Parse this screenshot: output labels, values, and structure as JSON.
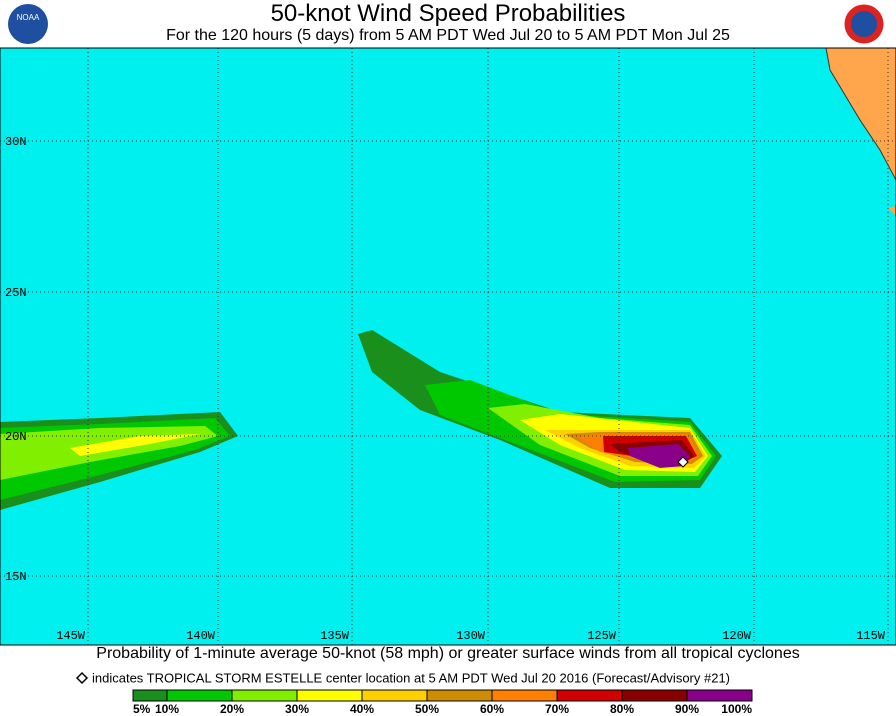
{
  "header": {
    "title": "50-knot Wind Speed Probabilities",
    "subtitle": "For the 120 hours (5 days) from 5 AM PDT Wed Jul 20 to 5 AM PDT Mon Jul 25",
    "left_logo": "NOAA"
  },
  "map": {
    "lat_labels": [
      "30N",
      "25N",
      "20N",
      "15N"
    ],
    "lon_labels": [
      "145W",
      "140W",
      "135W",
      "130W",
      "125W",
      "120W",
      "115W"
    ]
  },
  "footer": {
    "caption": "Probability of 1-minute average 50-knot (58 mph) or greater surface winds from all tropical cyclones",
    "note": "indicates TROPICAL STORM ESTELLE center location at 5 AM PDT Wed Jul 20 2016 (Forecast/Advisory #21)"
  },
  "legend": {
    "labels": [
      "5%",
      "10%",
      "20%",
      "30%",
      "40%",
      "50%",
      "60%",
      "70%",
      "80%",
      "90%",
      "100%"
    ],
    "colors": [
      "#1b8f1b",
      "#00c800",
      "#80f000",
      "#ffff00",
      "#ffd000",
      "#d08c00",
      "#ff7f00",
      "#d00000",
      "#8a0000",
      "#8b008b"
    ]
  }
}
